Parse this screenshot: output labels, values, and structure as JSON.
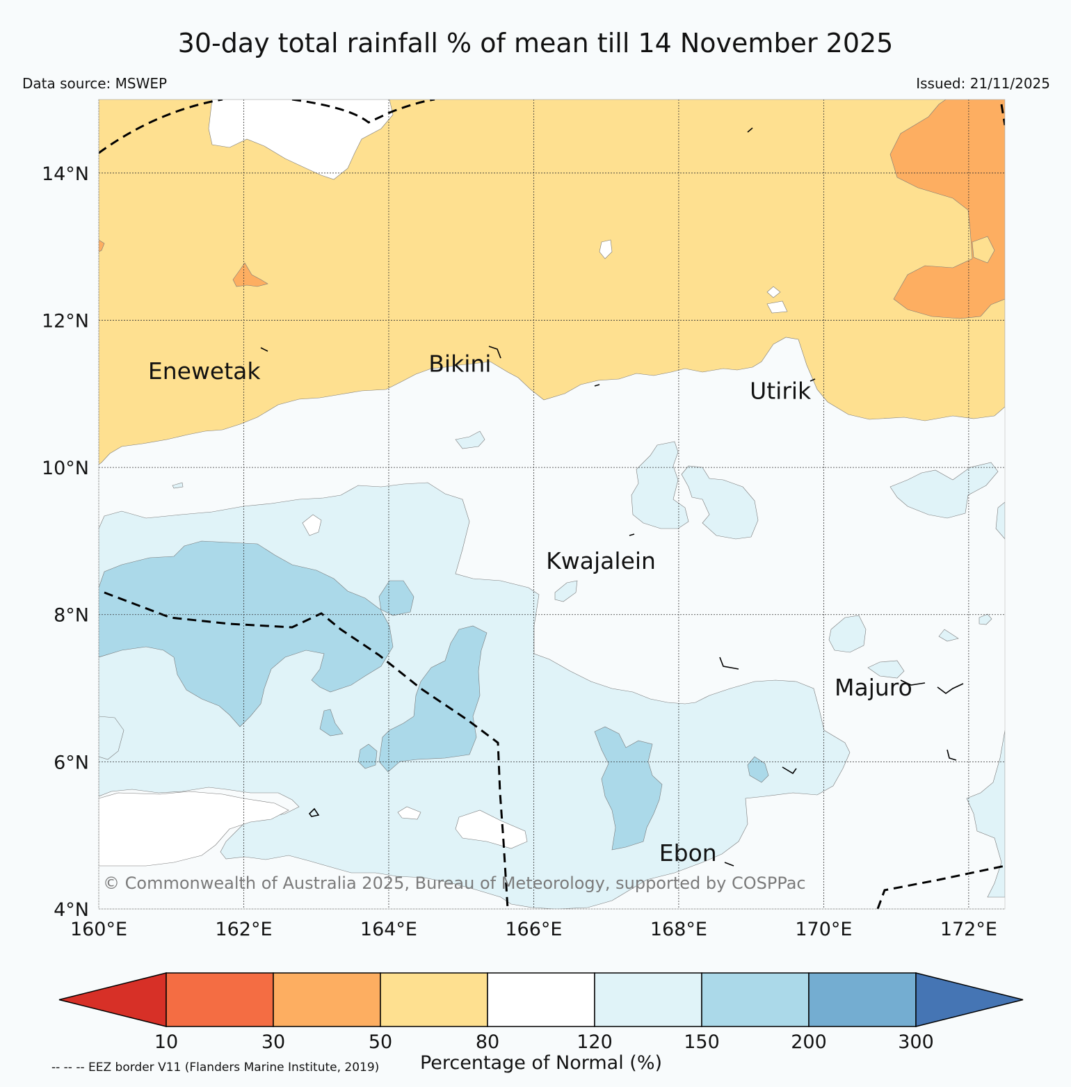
{
  "title": "30-day total rainfall % of mean till 14 November 2025",
  "data_source": "Data source: MSWEP",
  "issued": "Issued: 21/11/2025",
  "copyright": "© Commonwealth of Australia 2025, Bureau of Meteorology, supported by COSPPac",
  "eez_note": "-- -- -- EEZ border V11 (Flanders Marine Institute, 2019)",
  "map": {
    "lon_range": [
      160,
      172.5
    ],
    "lat_range": [
      4,
      15
    ],
    "lon_ticks": [
      {
        "value": 160,
        "label": "160°E"
      },
      {
        "value": 162,
        "label": "162°E"
      },
      {
        "value": 164,
        "label": "164°E"
      },
      {
        "value": 166,
        "label": "166°E"
      },
      {
        "value": 168,
        "label": "168°E"
      },
      {
        "value": 170,
        "label": "170°E"
      },
      {
        "value": 172,
        "label": "172°E"
      }
    ],
    "lat_ticks": [
      {
        "value": 4,
        "label": "4°N"
      },
      {
        "value": 6,
        "label": "6°N"
      },
      {
        "value": 8,
        "label": "8°N"
      },
      {
        "value": 10,
        "label": "10°N"
      },
      {
        "value": 12,
        "label": "12°N"
      },
      {
        "value": 14,
        "label": "14°N"
      }
    ],
    "places": [
      {
        "name": "Enewetak",
        "lon": 160.68,
        "lat": 11.2
      },
      {
        "name": "Bikini",
        "lon": 164.55,
        "lat": 11.3
      },
      {
        "name": "Utirik",
        "lon": 168.98,
        "lat": 10.93
      },
      {
        "name": "Kwajalein",
        "lon": 166.17,
        "lat": 8.62
      },
      {
        "name": "Majuro",
        "lon": 170.15,
        "lat": 6.9
      },
      {
        "name": "Ebon",
        "lon": 167.73,
        "lat": 4.65
      }
    ]
  },
  "colorbar": {
    "title": "Percentage of Normal (%)",
    "ticks": [
      "10",
      "30",
      "50",
      "80",
      "120",
      "150",
      "200",
      "300"
    ],
    "under_color": "#d73027",
    "over_color": "#4575b4",
    "bins": [
      {
        "color": "#f46d43"
      },
      {
        "color": "#fdae61"
      },
      {
        "color": "#fee090"
      },
      {
        "color": "#ffffff"
      },
      {
        "color": "#e0f3f8"
      },
      {
        "color": "#abd9e9"
      },
      {
        "color": "#74add1"
      }
    ]
  }
}
